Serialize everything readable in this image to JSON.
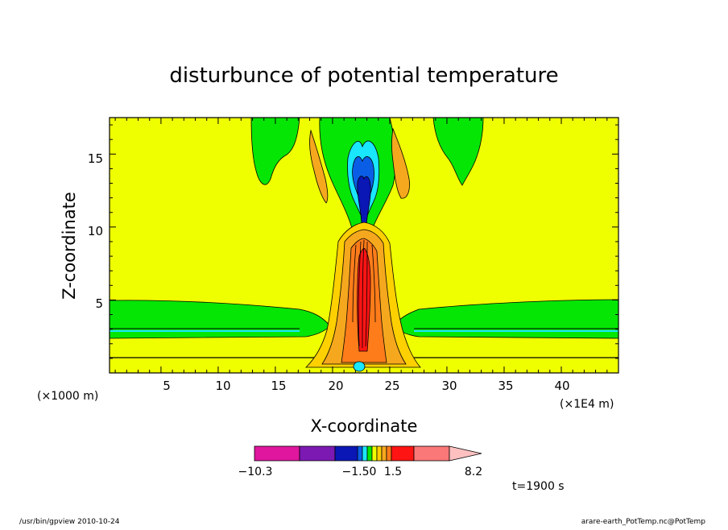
{
  "chart_data": {
    "type": "heatmap",
    "title": "disturbunce of potential temperature",
    "xlabel": "X-coordinate",
    "ylabel": "Z-coordinate",
    "x_unit_note": "(×1E4 m)",
    "y_unit_note": "(×1000 m)",
    "xlim": [
      0.5,
      45
    ],
    "ylim": [
      0,
      17.5
    ],
    "x_ticks": [
      "5",
      "10",
      "15",
      "20",
      "25",
      "30",
      "35",
      "40"
    ],
    "y_ticks": [
      "5",
      "10",
      "15"
    ],
    "x_tick_values": [
      5,
      10,
      15,
      20,
      25,
      30,
      35,
      40
    ],
    "y_tick_values": [
      5,
      10,
      15
    ],
    "colorbar": {
      "labels": [
        "−10.3",
        "−1.50",
        "1.5",
        "8.2"
      ],
      "colors": [
        "#e0169e",
        "#7d19b3",
        "#0a17b5",
        "#0a5ee6",
        "#19e6ff",
        "#05e605",
        "#f0ff00",
        "#ffd000",
        "#f5a81e",
        "#ff7c1a",
        "#ff1414",
        "#fa7878",
        "#ffc0c0"
      ]
    },
    "background_value_color": "#f0ff00",
    "annotation": "t=1900 s"
  },
  "footer": {
    "left": "/usr/bin/gpview   2010-10-24",
    "right": "arare-earth_PotTemp.nc@PotTemp"
  }
}
